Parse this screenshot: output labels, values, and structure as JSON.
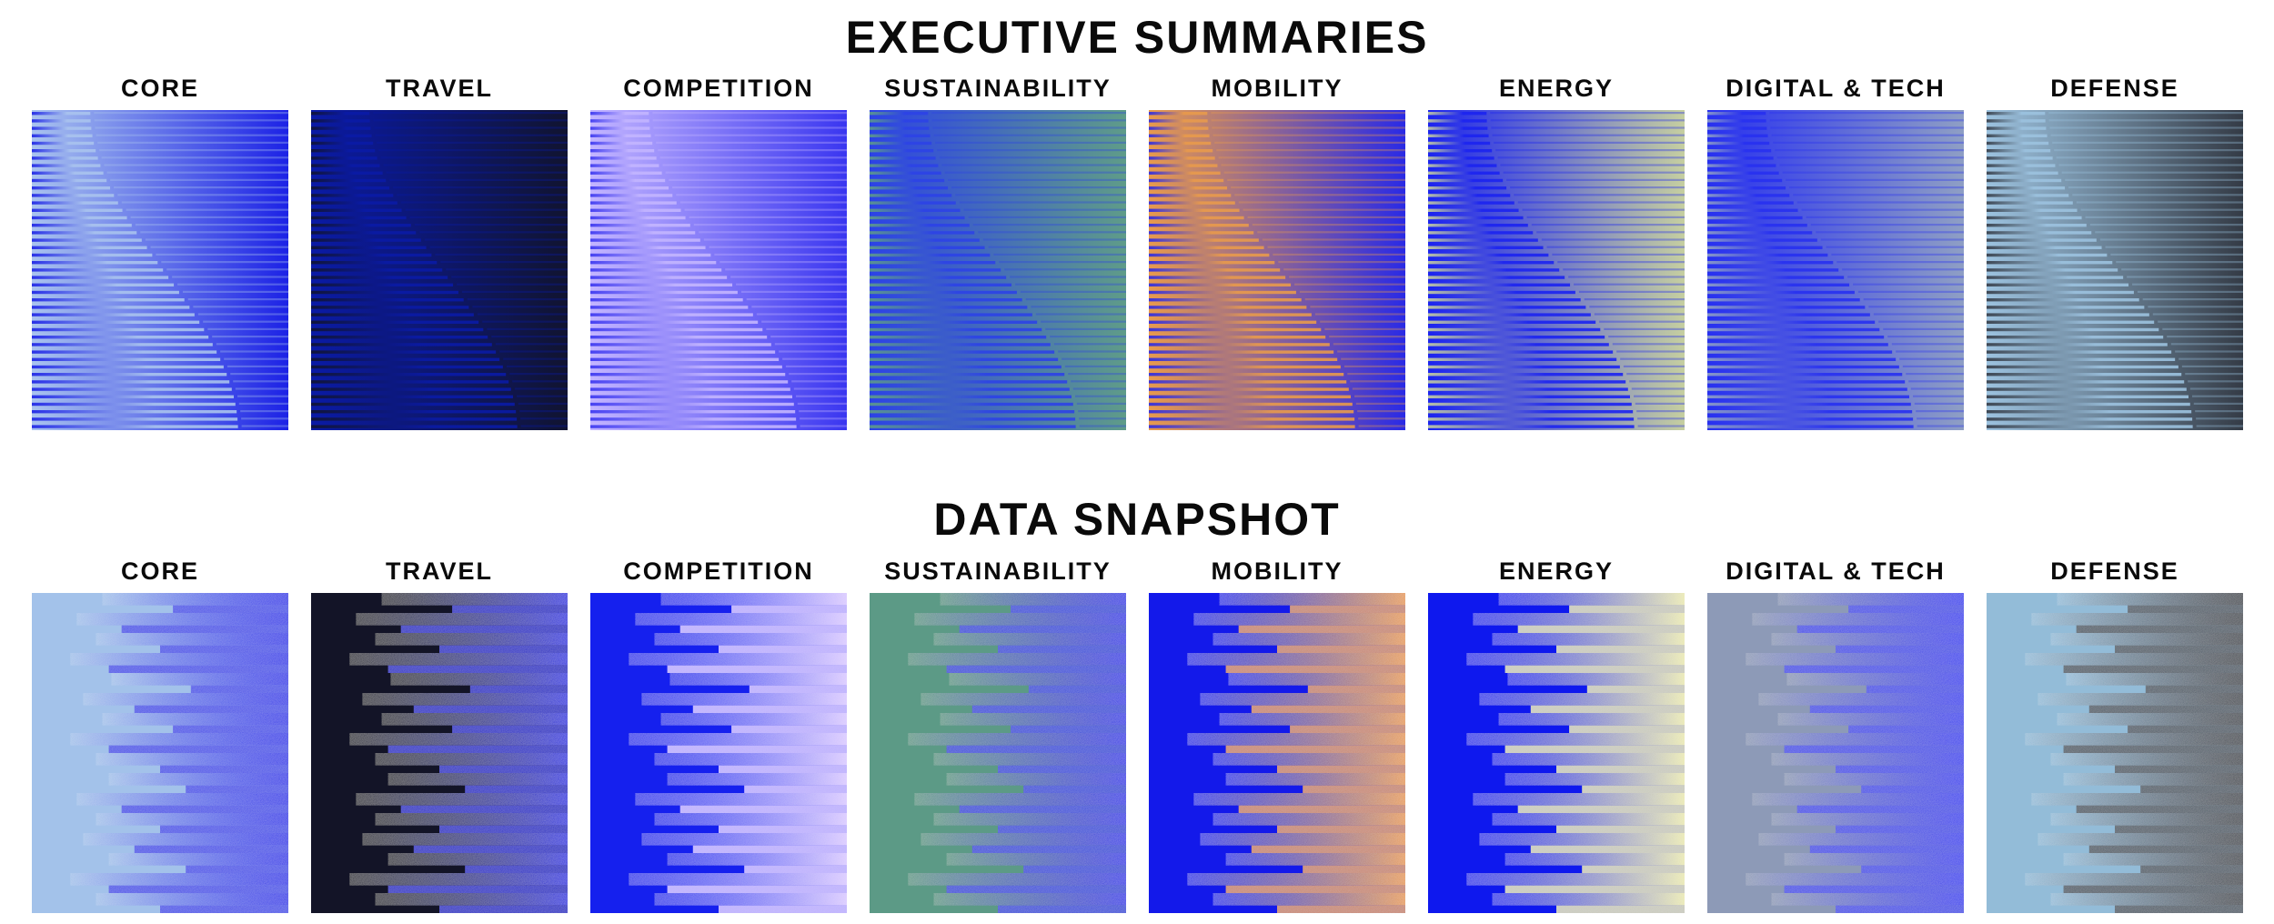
{
  "sections": [
    {
      "title": "EXECUTIVE SUMMARIES",
      "style": "s-curve",
      "tiles": [
        {
          "label": "CORE",
          "color_a": "#a9c3ee",
          "color_b": "#1c22e6"
        },
        {
          "label": "TRAVEL",
          "color_a": "#0a1aa6",
          "color_b": "#111430"
        },
        {
          "label": "COMPETITION",
          "color_a": "#c3b5ff",
          "color_b": "#3a36f0"
        },
        {
          "label": "SUSTAINABILITY",
          "color_a": "#2c42e6",
          "color_b": "#5f9c88"
        },
        {
          "label": "MOBILITY",
          "color_a": "#e89a4c",
          "color_b": "#2a2ae6"
        },
        {
          "label": "ENERGY",
          "color_a": "#1b23f0",
          "color_b": "#c6cfa0"
        },
        {
          "label": "DIGITAL & TECH",
          "color_a": "#2730f0",
          "color_b": "#8f9fc4"
        },
        {
          "label": "DEFENSE",
          "color_a": "#9cc2df",
          "color_b": "#343b46"
        }
      ]
    },
    {
      "title": "DATA SNAPSHOT",
      "style": "stripes",
      "tiles": [
        {
          "label": "CORE",
          "color_a": "#a3c2ea",
          "color_b": "#1722e8"
        },
        {
          "label": "TRAVEL",
          "color_a": "#131427",
          "color_b": "#0b14e0"
        },
        {
          "label": "COMPETITION",
          "color_a": "#1520ee",
          "color_b": "#d9c8ff"
        },
        {
          "label": "SUSTAINABILITY",
          "color_a": "#5c9a86",
          "color_b": "#1a24e6"
        },
        {
          "label": "MOBILITY",
          "color_a": "#1319ea",
          "color_b": "#e69a50"
        },
        {
          "label": "ENERGY",
          "color_a": "#0e18ee",
          "color_b": "#e9e8b0"
        },
        {
          "label": "DIGITAL & TECH",
          "color_a": "#8d9ab7",
          "color_b": "#2029ee"
        },
        {
          "label": "DEFENSE",
          "color_a": "#93bcd8",
          "color_b": "#343a44"
        }
      ]
    }
  ]
}
